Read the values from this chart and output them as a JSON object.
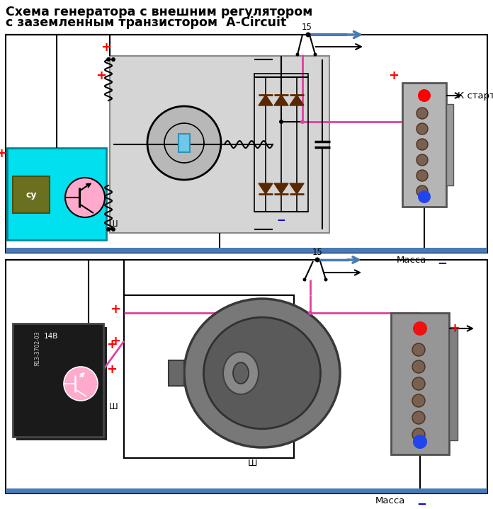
{
  "title_line1": "Схема генератора с внешним регулятором",
  "title_line2": "с заземленным транзистором  A-Circuit",
  "title_fontsize": 12.5,
  "bg_color": "#ffffff",
  "blue_bar_color": "#4a7ab5",
  "pink_color": "#e040a0",
  "cyan_box_color": "#00e5ff",
  "gray_box_color": "#c8c8c8",
  "dark_brown_diode": "#5a2800",
  "label_massa": "Масса",
  "label_starter": "К стартеру",
  "label_15": "15",
  "label_Sh": "Ш",
  "label_cy": "су"
}
